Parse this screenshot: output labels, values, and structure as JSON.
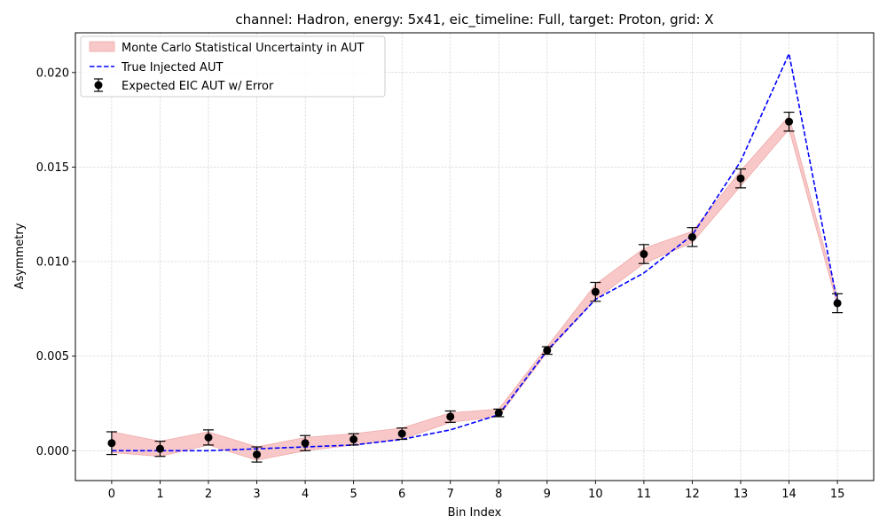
{
  "chart_data": {
    "type": "line",
    "title": "channel: Hadron, energy: 5x41, eic_timeline: Full, target: Proton, grid: X",
    "xlabel": "Bin Index",
    "ylabel": "Asymmetry",
    "x": [
      0,
      1,
      2,
      3,
      4,
      5,
      6,
      7,
      8,
      9,
      10,
      11,
      12,
      13,
      14,
      15
    ],
    "xticks": [
      "0",
      "1",
      "2",
      "3",
      "4",
      "5",
      "6",
      "7",
      "8",
      "9",
      "10",
      "11",
      "12",
      "13",
      "14",
      "15"
    ],
    "yticks": [
      0.0,
      0.005,
      0.01,
      0.015,
      0.02
    ],
    "ytick_labels": [
      "0.000",
      "0.005",
      "0.010",
      "0.015",
      "0.020"
    ],
    "xlim": [
      -0.75,
      15.75
    ],
    "ylim": [
      -0.00158,
      0.0221
    ],
    "grid": true,
    "legend_position": "upper-left",
    "series": [
      {
        "name": "Monte Carlo Statistical Uncertainty in AUT",
        "kind": "band",
        "color": "#f8c8c8",
        "lower": [
          -0.0001,
          -0.0003,
          0.0003,
          -0.0005,
          0.0,
          0.0003,
          0.0006,
          0.0015,
          0.0018,
          0.0052,
          0.008,
          0.0099,
          0.011,
          0.014,
          0.017,
          0.0077
        ],
        "upper": [
          0.001,
          0.0005,
          0.001,
          0.0002,
          0.0007,
          0.0009,
          0.0012,
          0.002,
          0.0022,
          0.0055,
          0.0088,
          0.0107,
          0.0116,
          0.0148,
          0.0177,
          0.0081
        ]
      },
      {
        "name": "True Injected AUT",
        "kind": "line",
        "color": "#0000ff",
        "style": "dashed",
        "values": [
          0.0,
          0.0,
          0.0,
          0.0001,
          0.0002,
          0.0003,
          0.0006,
          0.0011,
          0.0019,
          0.0053,
          0.008,
          0.0094,
          0.0114,
          0.0153,
          0.021,
          0.0078
        ]
      },
      {
        "name": "Expected EIC AUT w/ Error",
        "kind": "errorbar",
        "color": "#000000",
        "values": [
          0.0004,
          0.0001,
          0.0007,
          -0.0002,
          0.0004,
          0.0006,
          0.0009,
          0.0018,
          0.002,
          0.0053,
          0.0084,
          0.0104,
          0.0113,
          0.0144,
          0.0174,
          0.0078
        ],
        "errors": [
          0.0006,
          0.0004,
          0.0004,
          0.0004,
          0.0004,
          0.0003,
          0.0003,
          0.0003,
          0.0002,
          0.0002,
          0.0005,
          0.0005,
          0.0005,
          0.0005,
          0.0005,
          0.0005
        ]
      }
    ]
  }
}
